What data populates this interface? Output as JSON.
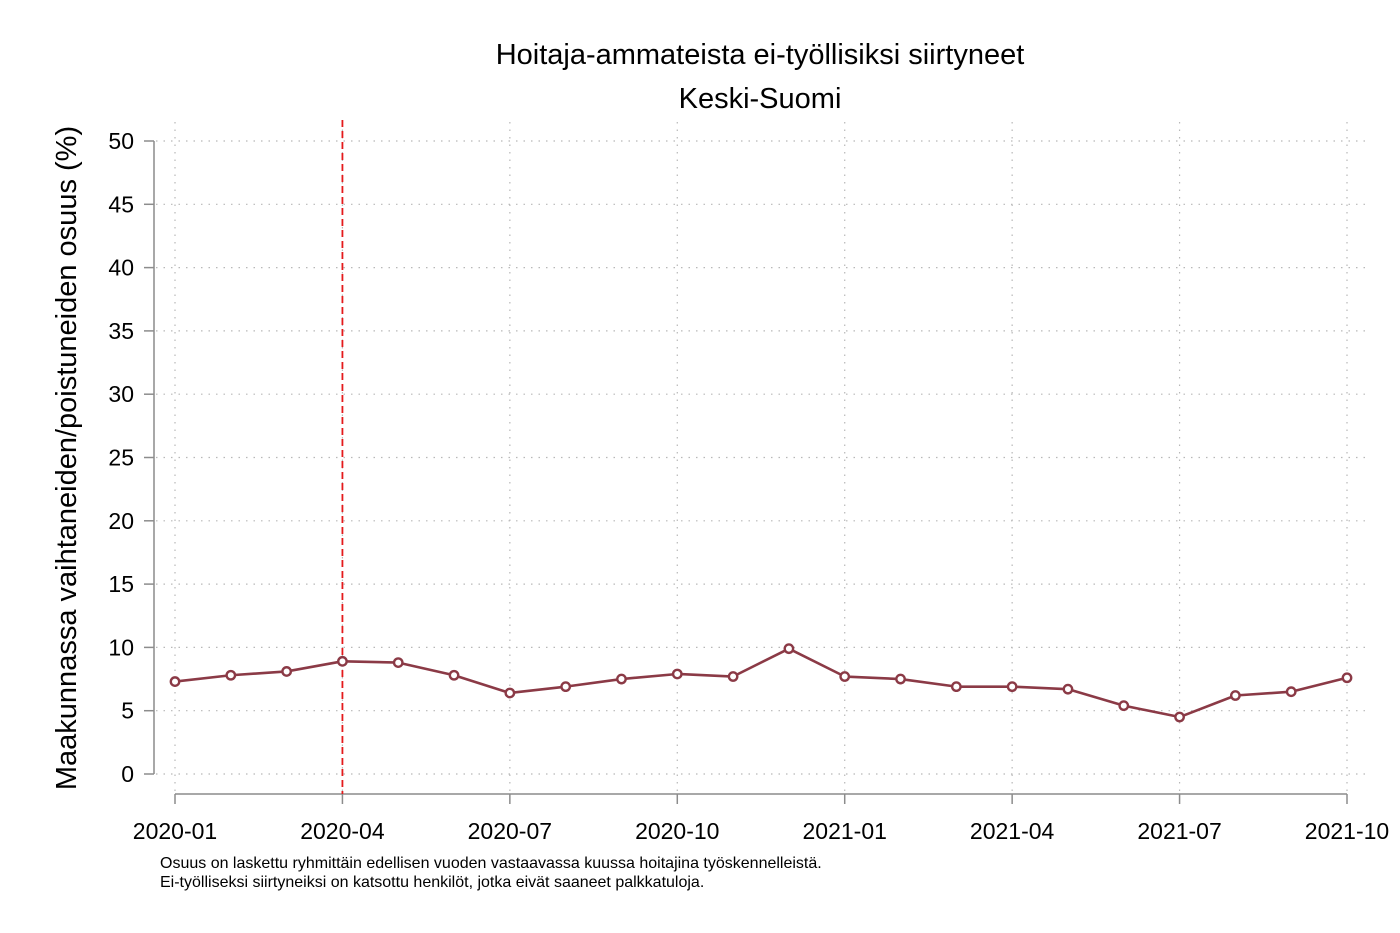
{
  "chart_data": {
    "type": "line",
    "title": "Hoitaja-ammateista ei-työllisiksi siirtyneet",
    "subtitle": "Keski-Suomi",
    "ylabel": "Maakunnassa vaihtaneiden/poistuneiden osuus (%)",
    "xlabel": "",
    "ylim": [
      0,
      50
    ],
    "yticks": [
      0,
      5,
      10,
      15,
      20,
      25,
      30,
      35,
      40,
      45,
      50
    ],
    "xtick_labels": [
      "2020-01",
      "2020-04",
      "2020-07",
      "2020-10",
      "2021-01",
      "2021-04",
      "2021-07",
      "2021-10"
    ],
    "grid": true,
    "reference_line": {
      "x": "2020-04",
      "style": "dashed",
      "color": "#e41a1c"
    },
    "series": [
      {
        "color": "#8b3a46",
        "x": [
          "2020-01",
          "2020-02",
          "2020-03",
          "2020-04",
          "2020-05",
          "2020-06",
          "2020-07",
          "2020-08",
          "2020-09",
          "2020-10",
          "2020-11",
          "2020-12",
          "2021-01",
          "2021-02",
          "2021-03",
          "2021-04",
          "2021-05",
          "2021-06",
          "2021-07",
          "2021-08",
          "2021-09",
          "2021-10"
        ],
        "values": [
          7.3,
          7.8,
          8.1,
          8.9,
          8.8,
          7.8,
          6.4,
          6.9,
          7.5,
          7.9,
          7.7,
          9.9,
          7.7,
          7.5,
          6.9,
          6.9,
          6.7,
          5.4,
          4.5,
          6.2,
          6.5,
          7.6
        ]
      }
    ]
  },
  "notes": {
    "line1": "Osuus on laskettu ryhmittäin edellisen vuoden vastaavassa kuussa hoitajina työskennelleistä.",
    "line2": "Ei-työlliseksi siirtyneiksi on katsottu henkilöt, jotka eivät saaneet palkkatuloja."
  }
}
